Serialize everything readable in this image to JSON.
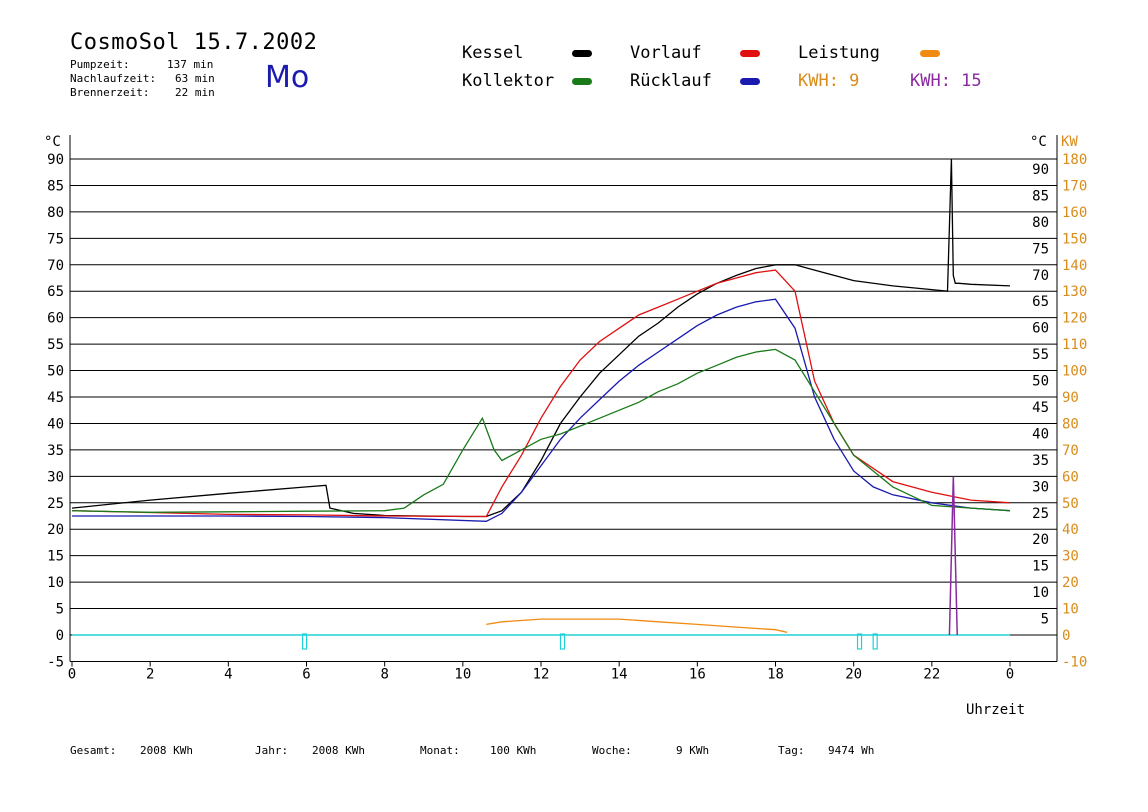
{
  "header": {
    "title": "CosmoSol 15.7.2002",
    "day": "Mo",
    "stats": [
      {
        "label": "Pumpzeit:",
        "value": "137 min"
      },
      {
        "label": "Nachlaufzeit:",
        "value": "63 min"
      },
      {
        "label": "Brennerzeit:",
        "value": "22 min"
      }
    ]
  },
  "legend": {
    "kessel": "Kessel",
    "kollektor": "Kollektor",
    "vorlauf": "Vorlauf",
    "ruecklauf": "Rücklauf",
    "leistung": "Leistung",
    "kwh1": "KWH: 9",
    "kwh2": "KWH: 15"
  },
  "colors": {
    "kessel": "#000000",
    "kollektor": "#1a7a1a",
    "vorlauf": "#e01010",
    "ruecklauf": "#1a1ab0",
    "leistung": "#f08a10",
    "kwh_orange": "#d98c1a",
    "kwh_purple": "#8a2aa0",
    "pump": "#20d0d8",
    "right_axis": "#d98c1a"
  },
  "footer": [
    {
      "label": "Gesamt:",
      "value": "2008 KWh"
    },
    {
      "label": "Jahr:",
      "value": "2008 KWh"
    },
    {
      "label": "Monat:",
      "value": "100 KWh"
    },
    {
      "label": "Woche:",
      "value": "9 KWh"
    },
    {
      "label": "Tag:",
      "value": "9474 Wh"
    }
  ],
  "chart_data": {
    "type": "line",
    "xlabel": "Uhrzeit",
    "ylabel_left": "°C",
    "ylabel_right_c": "°C",
    "ylabel_right_kw": "KW",
    "xlim": [
      0,
      24
    ],
    "ylim": [
      -5,
      90
    ],
    "x_ticks": [
      "0",
      "2",
      "4",
      "6",
      "8",
      "10",
      "12",
      "14",
      "16",
      "18",
      "20",
      "22",
      "0"
    ],
    "y_ticks_left": [
      "90",
      "85",
      "80",
      "75",
      "70",
      "65",
      "60",
      "55",
      "50",
      "45",
      "40",
      "35",
      "30",
      "25",
      "20",
      "15",
      "10",
      "5",
      "0",
      "-5"
    ],
    "y_ticks_right_c": [
      "90",
      "85",
      "80",
      "75",
      "70",
      "65",
      "60",
      "55",
      "50",
      "45",
      "40",
      "35",
      "30",
      "25",
      "20",
      "15",
      "10",
      "5"
    ],
    "y_ticks_right_kw": [
      "180",
      "170",
      "160",
      "150",
      "140",
      "130",
      "120",
      "110",
      "100",
      "90",
      "80",
      "70",
      "60",
      "50",
      "40",
      "30",
      "20",
      "10",
      "0",
      "-10"
    ],
    "grid": "horizontal",
    "series": [
      {
        "name": "Kessel",
        "color": "#000000",
        "x": [
          0,
          2,
          4,
          6,
          6.5,
          6.6,
          7.2,
          8,
          10,
          10.6,
          11,
          11.5,
          12,
          12.5,
          13,
          13.5,
          14,
          14.5,
          15,
          15.5,
          16,
          16.5,
          17,
          17.5,
          18,
          18.5,
          19,
          20,
          21,
          22,
          22.4,
          22.5,
          22.55,
          22.6,
          22.7,
          23,
          24
        ],
        "y": [
          24,
          25.5,
          26.8,
          28,
          28.3,
          24,
          23,
          22.6,
          22.4,
          22.4,
          23.5,
          27,
          33,
          40,
          45,
          49.5,
          53,
          56.5,
          59,
          62,
          64.5,
          66.5,
          68,
          69.3,
          70,
          70,
          69,
          67,
          66,
          65.3,
          65,
          90,
          68,
          66.5,
          66.5,
          66.3,
          66
        ]
      },
      {
        "name": "Vorlauf",
        "color": "#e01010",
        "x": [
          0,
          4,
          6,
          8,
          10.6,
          11,
          11.5,
          12,
          12.5,
          13,
          13.5,
          14,
          14.5,
          15,
          15.5,
          16,
          16.5,
          17,
          17.5,
          18,
          18.5,
          19,
          19.5,
          20,
          21,
          22,
          23,
          24
        ],
        "y": [
          23.5,
          22.8,
          22.7,
          22.5,
          22.4,
          28,
          34,
          41,
          47,
          52,
          55.5,
          58,
          60.5,
          62,
          63.5,
          65,
          66.5,
          67.5,
          68.5,
          69,
          65,
          48,
          40,
          34,
          29,
          27,
          25.5,
          25
        ]
      },
      {
        "name": "Rücklauf",
        "color": "#1a1ab0",
        "x": [
          0,
          4,
          6,
          8,
          10.6,
          11,
          11.5,
          12,
          12.5,
          13,
          13.5,
          14,
          14.5,
          15,
          15.5,
          16,
          16.5,
          17,
          17.5,
          18,
          18.5,
          19,
          19.5,
          20,
          20.5,
          21,
          22,
          23,
          24
        ],
        "y": [
          22.5,
          22.5,
          22.4,
          22.2,
          21.5,
          23,
          27,
          32,
          37,
          41,
          44.5,
          48,
          51,
          53.5,
          56,
          58.5,
          60.5,
          62,
          63,
          63.5,
          58,
          45,
          37,
          31,
          28,
          26.5,
          25,
          24,
          23.5
        ]
      },
      {
        "name": "Kollektor",
        "color": "#1a7a1a",
        "x": [
          0,
          2,
          4,
          6,
          8,
          8.5,
          9,
          9.5,
          10,
          10.5,
          10.8,
          11,
          11.5,
          12,
          12.5,
          13,
          13.5,
          14,
          14.5,
          15,
          15.5,
          16,
          16.5,
          17,
          17.5,
          18,
          18.5,
          19,
          19.5,
          20,
          21,
          22,
          23,
          24
        ],
        "y": [
          23.5,
          23.2,
          23.3,
          23.4,
          23.5,
          24,
          26.5,
          28.5,
          35,
          41,
          35,
          33,
          35,
          37,
          38,
          39.5,
          41,
          42.5,
          44,
          46,
          47.5,
          49.5,
          51,
          52.5,
          53.5,
          54,
          52,
          46,
          40,
          34,
          28,
          24.5,
          24,
          23.5
        ]
      },
      {
        "name": "Leistung",
        "color": "#f08a10",
        "x": [
          10.6,
          11,
          12,
          13,
          14,
          15,
          16,
          17,
          18,
          18.3
        ],
        "y": [
          2,
          2.5,
          3,
          3,
          3,
          2.5,
          2,
          1.5,
          1,
          0.5
        ]
      }
    ]
  }
}
